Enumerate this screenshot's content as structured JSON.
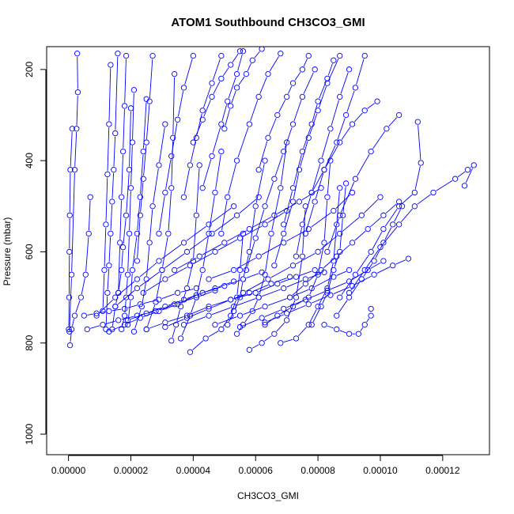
{
  "chart_data": {
    "type": "line",
    "title": "ATOM1 Southbound CH3CO3_GMI",
    "xlabel": "CH3CO3_GMI",
    "ylabel": "Pressure (mbar)",
    "xlim": [
      -7e-06,
      0.000135
    ],
    "ylim": [
      1045,
      150
    ],
    "y_reversed": true,
    "x_ticks": [
      "0.00000",
      "0.00002",
      "0.00004",
      "0.00006",
      "0.00008",
      "0.00010",
      "0.00012"
    ],
    "x_tick_values": [
      0.0,
      2e-05,
      4e-05,
      6e-05,
      8e-05,
      0.0001,
      0.00012
    ],
    "y_ticks": [
      "200",
      "400",
      "600",
      "800",
      "1000"
    ],
    "y_tick_values": [
      200,
      400,
      600,
      800,
      1000
    ],
    "series_color": "#0000ff",
    "marker": "open-circle",
    "grid": false,
    "legend": "none",
    "series": [
      {
        "x": [
          3e-07,
          1e-06,
          2e-06,
          2.6e-06,
          3e-06,
          2.8e-06
        ],
        "y": [
          775,
          650,
          420,
          330,
          250,
          165
        ]
      },
      {
        "x": [
          1e-07,
          2e-07,
          3e-07,
          4e-07,
          6e-07,
          1.2e-06
        ],
        "y": [
          770,
          700,
          600,
          520,
          420,
          330
        ]
      },
      {
        "x": [
          5e-07,
          1e-06,
          2e-06,
          4e-06,
          5.5e-06,
          6.5e-06,
          7e-06
        ],
        "y": [
          805,
          770,
          740,
          700,
          650,
          560,
          480
        ]
      },
      {
        "x": [
          1.2e-05,
          1.25e-05,
          1.3e-05,
          1.35e-05,
          1.4e-05,
          1.45e-05,
          1.5e-05,
          1.58e-05
        ],
        "y": [
          770,
          690,
          630,
          560,
          490,
          420,
          340,
          165
        ]
      },
      {
        "x": [
          1.4e-05,
          1.5e-05,
          1.6e-05,
          1.7e-05,
          1.75e-05,
          1.85e-05,
          1.95e-05,
          2e-05
        ],
        "y": [
          770,
          720,
          690,
          640,
          590,
          520,
          420,
          285
        ]
      },
      {
        "x": [
          1.7e-05,
          1.8e-05,
          1.85e-05,
          1.9e-05,
          1.95e-05,
          2e-05,
          2.05e-05,
          2.1e-05
        ],
        "y": [
          770,
          740,
          700,
          650,
          560,
          460,
          360,
          245
        ]
      },
      {
        "x": [
          1.9e-05,
          2e-05,
          2.05e-05,
          2.2e-05,
          2.3e-05,
          2.4e-05,
          2.5e-05
        ],
        "y": [
          760,
          700,
          640,
          560,
          480,
          380,
          265
        ]
      },
      {
        "x": [
          2.1e-05,
          2.35e-05,
          2.5e-05,
          2.6e-05,
          2.7e-05,
          2.9e-05,
          3.1e-05
        ],
        "y": [
          775,
          720,
          660,
          580,
          500,
          410,
          320
        ]
      },
      {
        "x": [
          2.5e-05,
          2.8e-05,
          3e-05,
          3.2e-05,
          3.3e-05,
          3.35e-05,
          3.4e-05
        ],
        "y": [
          770,
          710,
          640,
          560,
          460,
          350,
          210
        ]
      },
      {
        "x": [
          3.3e-05,
          3.45e-05,
          3.6e-05,
          3.8e-05,
          4e-05,
          4.1e-05,
          4.2e-05
        ],
        "y": [
          795,
          760,
          720,
          680,
          620,
          520,
          410
        ]
      },
      {
        "x": [
          3.6e-05,
          3.9e-05,
          4.1e-05,
          4.3e-05,
          4.5e-05,
          4.7e-05,
          4.9e-05
        ],
        "y": [
          790,
          740,
          700,
          640,
          560,
          470,
          380
        ]
      },
      {
        "x": [
          3.9e-05,
          4.4e-05,
          4.9e-05,
          5.2e-05,
          5.4e-05,
          5.5e-05,
          5.6e-05
        ],
        "y": [
          820,
          790,
          770,
          740,
          700,
          640,
          560
        ]
      },
      {
        "x": [
          5.1e-05,
          5.3e-05,
          5.5e-05,
          5.6e-05,
          5.8e-05,
          6e-05,
          6.3e-05
        ],
        "y": [
          760,
          730,
          700,
          660,
          600,
          500,
          400
        ]
      },
      {
        "x": [
          5.4e-05,
          5.6e-05,
          5.9e-05,
          6.1e-05,
          6.3e-05,
          6.5e-05,
          6.8e-05,
          7e-05
        ],
        "y": [
          780,
          760,
          730,
          700,
          650,
          560,
          460,
          360
        ]
      },
      {
        "x": [
          5.8e-05,
          6.2e-05,
          6.6e-05,
          7e-05,
          7.3e-05,
          7.5e-05,
          7.6e-05
        ],
        "y": [
          815,
          800,
          780,
          750,
          700,
          610,
          500
        ]
      },
      {
        "x": [
          6.3e-05,
          6.7e-05,
          7.2e-05,
          7.7e-05,
          8e-05,
          8.2e-05,
          8.3e-05,
          8.4e-05
        ],
        "y": [
          760,
          740,
          720,
          700,
          650,
          580,
          480,
          400
        ]
      },
      {
        "x": [
          6.8e-05,
          7.3e-05,
          7.7e-05,
          8e-05,
          8.3e-05,
          8.5e-05,
          8.6e-05,
          8.7e-05
        ],
        "y": [
          800,
          790,
          760,
          720,
          680,
          620,
          540,
          460
        ]
      },
      {
        "x": [
          7.8e-05,
          8.1e-05,
          8.3e-05,
          8.5e-05,
          8.7e-05,
          8.8e-05,
          8.9e-05
        ],
        "y": [
          760,
          720,
          690,
          640,
          600,
          520,
          450
        ]
      },
      {
        "x": [
          8.2e-05,
          8.6e-05,
          9e-05,
          9.3e-05,
          9.5e-05,
          9.7e-05,
          9.7e-05
        ],
        "y": [
          760,
          770,
          780,
          780,
          760,
          740,
          725
        ]
      },
      {
        "x": [
          8.6e-05,
          9e-05,
          9.4e-05,
          9.8e-05,
          0.000101,
          0.000104,
          0.000107
        ],
        "y": [
          740,
          700,
          660,
          620,
          580,
          540,
          500
        ]
      },
      {
        "x": [
          9e-05,
          9.5e-05,
          0.0001,
          0.000106,
          0.000111,
          0.000117,
          0.000124,
          0.000128,
          0.00013,
          0.000127
        ],
        "y": [
          690,
          640,
          590,
          540,
          500,
          470,
          440,
          420,
          410,
          455
        ]
      },
      {
        "x": [
          8.7e-05,
          9.2e-05,
          9.7e-05,
          0.000101,
          0.000106,
          0.000111,
          0.000113,
          0.000112
        ],
        "y": [
          700,
          650,
          600,
          550,
          500,
          470,
          405,
          315
        ]
      },
      {
        "x": [
          8.3e-05,
          8.7e-05,
          9.2e-05,
          9.7e-05,
          0.000102,
          0.000106
        ],
        "y": [
          600,
          520,
          440,
          380,
          330,
          300
        ]
      },
      {
        "x": [
          7.8e-05,
          8.2e-05,
          8.7e-05,
          9.1e-05,
          9.5e-05,
          9.9e-05
        ],
        "y": [
          470,
          420,
          360,
          320,
          290,
          270
        ]
      },
      {
        "x": [
          6.9e-05,
          7.2e-05,
          7.5e-05,
          7.8e-05,
          8e-05,
          8.3e-05,
          8.5e-05
        ],
        "y": [
          540,
          460,
          380,
          320,
          270,
          220,
          180
        ]
      },
      {
        "x": [
          6.1e-05,
          6.4e-05,
          6.7e-05,
          7e-05,
          7.2e-05,
          7.5e-05,
          7.7e-05
        ],
        "y": [
          420,
          350,
          300,
          260,
          230,
          200,
          170
        ]
      },
      {
        "x": [
          4.9e-05,
          5.1e-05,
          5.4e-05,
          5.8e-05,
          6.1e-05,
          6.4e-05,
          6.8e-05
        ],
        "y": [
          560,
          480,
          400,
          320,
          260,
          210,
          165
        ]
      },
      {
        "x": [
          4.3e-05,
          4.6e-05,
          4.9e-05,
          5.1e-05,
          5.4e-05,
          5.6e-05
        ],
        "y": [
          460,
          390,
          320,
          270,
          210,
          160
        ]
      },
      {
        "x": [
          3.7e-05,
          3.9e-05,
          4.1e-05,
          4.3e-05,
          4.6e-05,
          4.9e-05
        ],
        "y": [
          480,
          410,
          350,
          290,
          230,
          170
        ]
      },
      {
        "x": [
          2.9e-05,
          3.1e-05,
          3.3e-05,
          3.5e-05,
          3.7e-05,
          4e-05
        ],
        "y": [
          560,
          470,
          390,
          310,
          240,
          170
        ]
      },
      {
        "x": [
          2.2e-05,
          2.3e-05,
          2.4e-05,
          2.5e-05,
          2.6e-05,
          2.7e-05
        ],
        "y": [
          620,
          520,
          440,
          360,
          270,
          170
        ]
      },
      {
        "x": [
          1.6e-05,
          1.65e-05,
          1.7e-05,
          1.75e-05,
          1.8e-05,
          1.85e-05
        ],
        "y": [
          690,
          580,
          480,
          380,
          280,
          170
        ]
      },
      {
        "x": [
          1.1e-05,
          1.15e-05,
          1.2e-05,
          1.25e-05,
          1.3e-05,
          1.35e-05
        ],
        "y": [
          730,
          640,
          540,
          430,
          320,
          190
        ]
      },
      {
        "x": [
          5e-06,
          9e-06,
          1.3e-05,
          1.8e-05,
          2.3e-05,
          2.9e-05,
          3.5e-05,
          4.1e-05
        ],
        "y": [
          740,
          735,
          730,
          725,
          715,
          705,
          690,
          680
        ]
      },
      {
        "x": [
          6e-06,
          1.1e-05,
          1.6e-05,
          2.2e-05,
          2.8e-05,
          3.4e-05,
          4.1e-05,
          4.7e-05
        ],
        "y": [
          770,
          760,
          750,
          740,
          730,
          715,
          700,
          685
        ]
      },
      {
        "x": [
          1.3e-05,
          1.8e-05,
          2.3e-05,
          2.9e-05,
          3.5e-05,
          4.1e-05,
          4.7e-05,
          5.3e-05
        ],
        "y": [
          775,
          760,
          745,
          730,
          715,
          695,
          680,
          665
        ]
      },
      {
        "x": [
          1.9e-05,
          2.5e-05,
          3.1e-05,
          3.7e-05,
          4.3e-05,
          5e-05,
          5.6e-05,
          6.2e-05
        ],
        "y": [
          750,
          735,
          720,
          705,
          690,
          675,
          660,
          645
        ]
      },
      {
        "x": [
          2.5e-05,
          3.1e-05,
          3.8e-05,
          4.5e-05,
          5.2e-05,
          5.8e-05,
          6.5e-05,
          7.1e-05
        ],
        "y": [
          770,
          755,
          740,
          720,
          705,
          690,
          670,
          655
        ]
      },
      {
        "x": [
          3.1e-05,
          3.8e-05,
          4.5e-05,
          5.2e-05,
          6e-05,
          6.7e-05,
          7.3e-05,
          7.9e-05
        ],
        "y": [
          765,
          745,
          725,
          705,
          690,
          670,
          655,
          640
        ]
      },
      {
        "x": [
          3.7e-05,
          4.5e-05,
          5.3e-05,
          6.1e-05,
          6.9e-05,
          7.6e-05,
          8.2e-05
        ],
        "y": [
          760,
          740,
          720,
          700,
          680,
          660,
          645
        ]
      },
      {
        "x": [
          4.7e-05,
          5.5e-05,
          6.3e-05,
          7.1e-05,
          7.8e-05,
          8.5e-05,
          9e-05
        ],
        "y": [
          760,
          740,
          720,
          700,
          680,
          655,
          640
        ]
      },
      {
        "x": [
          5.5e-05,
          6.2e-05,
          6.9e-05,
          7.6e-05,
          8.3e-05,
          9e-05,
          9.6e-05,
          0.000101
        ],
        "y": [
          765,
          745,
          725,
          705,
          685,
          665,
          640,
          620
        ]
      },
      {
        "x": [
          6.3e-05,
          7e-05,
          7.7e-05,
          8.4e-05,
          9.1e-05,
          9.8e-05,
          0.000104,
          0.000109
        ],
        "y": [
          755,
          735,
          715,
          695,
          675,
          650,
          630,
          615
        ]
      },
      {
        "x": [
          7.1e-05,
          7.6e-05,
          8.1e-05,
          8.6e-05,
          9.1e-05,
          9.6e-05,
          0.000101,
          0.000106
        ],
        "y": [
          700,
          670,
          640,
          610,
          580,
          550,
          520,
          490
        ]
      },
      {
        "x": [
          5.6e-05,
          6.4e-05,
          7.2e-05,
          8e-05,
          8.7e-05,
          9.4e-05,
          0.0001
        ],
        "y": [
          690,
          660,
          630,
          600,
          560,
          520,
          480
        ]
      },
      {
        "x": [
          4.5e-05,
          5.3e-05,
          6.1e-05,
          6.9e-05,
          7.7e-05,
          8.5e-05,
          9.1e-05
        ],
        "y": [
          660,
          640,
          610,
          580,
          550,
          510,
          470
        ]
      },
      {
        "x": [
          3.4e-05,
          4.2e-05,
          5e-05,
          5.8e-05,
          6.6e-05,
          7.4e-05,
          8.1e-05
        ],
        "y": [
          640,
          610,
          580,
          550,
          520,
          490,
          460
        ]
      },
      {
        "x": [
          2.4e-05,
          3.1e-05,
          3.9e-05,
          4.7e-05,
          5.5e-05,
          6.3e-05,
          7e-05
        ],
        "y": [
          690,
          660,
          630,
          600,
          570,
          540,
          510
        ]
      },
      {
        "x": [
          1.5e-05,
          2.2e-05,
          3e-05,
          3.8e-05,
          4.6e-05,
          5.4e-05,
          6.1e-05
        ],
        "y": [
          720,
          680,
          640,
          600,
          560,
          520,
          480
        ]
      },
      {
        "x": [
          9e-06,
          1.5e-05,
          2.2e-05,
          2.9e-05,
          3.7e-05,
          4.5e-05,
          5.3e-05
        ],
        "y": [
          740,
          700,
          660,
          620,
          580,
          540,
          500
        ]
      },
      {
        "x": [
          5.7e-05,
          6e-05,
          6.3e-05,
          6.6e-05,
          6.9e-05,
          7.2e-05,
          7.5e-05,
          7.9e-05
        ],
        "y": [
          640,
          570,
          500,
          440,
          380,
          320,
          260,
          200
        ]
      },
      {
        "x": [
          6.6e-05,
          6.9e-05,
          7.2e-05,
          7.4e-05,
          7.7e-05,
          8e-05,
          8.3e-05,
          8.7e-05
        ],
        "y": [
          630,
          560,
          490,
          420,
          350,
          290,
          230,
          170
        ]
      },
      {
        "x": [
          7.3e-05,
          7.5e-05,
          7.8e-05,
          8.1e-05,
          8.4e-05,
          8.7e-05,
          9e-05
        ],
        "y": [
          610,
          540,
          470,
          400,
          330,
          260,
          200
        ]
      },
      {
        "x": [
          7.6e-05,
          7.9e-05,
          8.2e-05,
          8.6e-05,
          8.9e-05,
          9.2e-05,
          9.5e-05
        ],
        "y": [
          560,
          490,
          420,
          360,
          300,
          240,
          170
        ]
      },
      {
        "x": [
          5e-05,
          5.2e-05,
          5.4e-05,
          5.7e-05,
          5.9e-05,
          6.2e-05
        ],
        "y": [
          330,
          280,
          240,
          210,
          180,
          155
        ]
      },
      {
        "x": [
          4e-05,
          4.3e-05,
          4.6e-05,
          4.9e-05,
          5.2e-05,
          5.5e-05
        ],
        "y": [
          360,
          310,
          260,
          220,
          190,
          160
        ]
      }
    ]
  }
}
